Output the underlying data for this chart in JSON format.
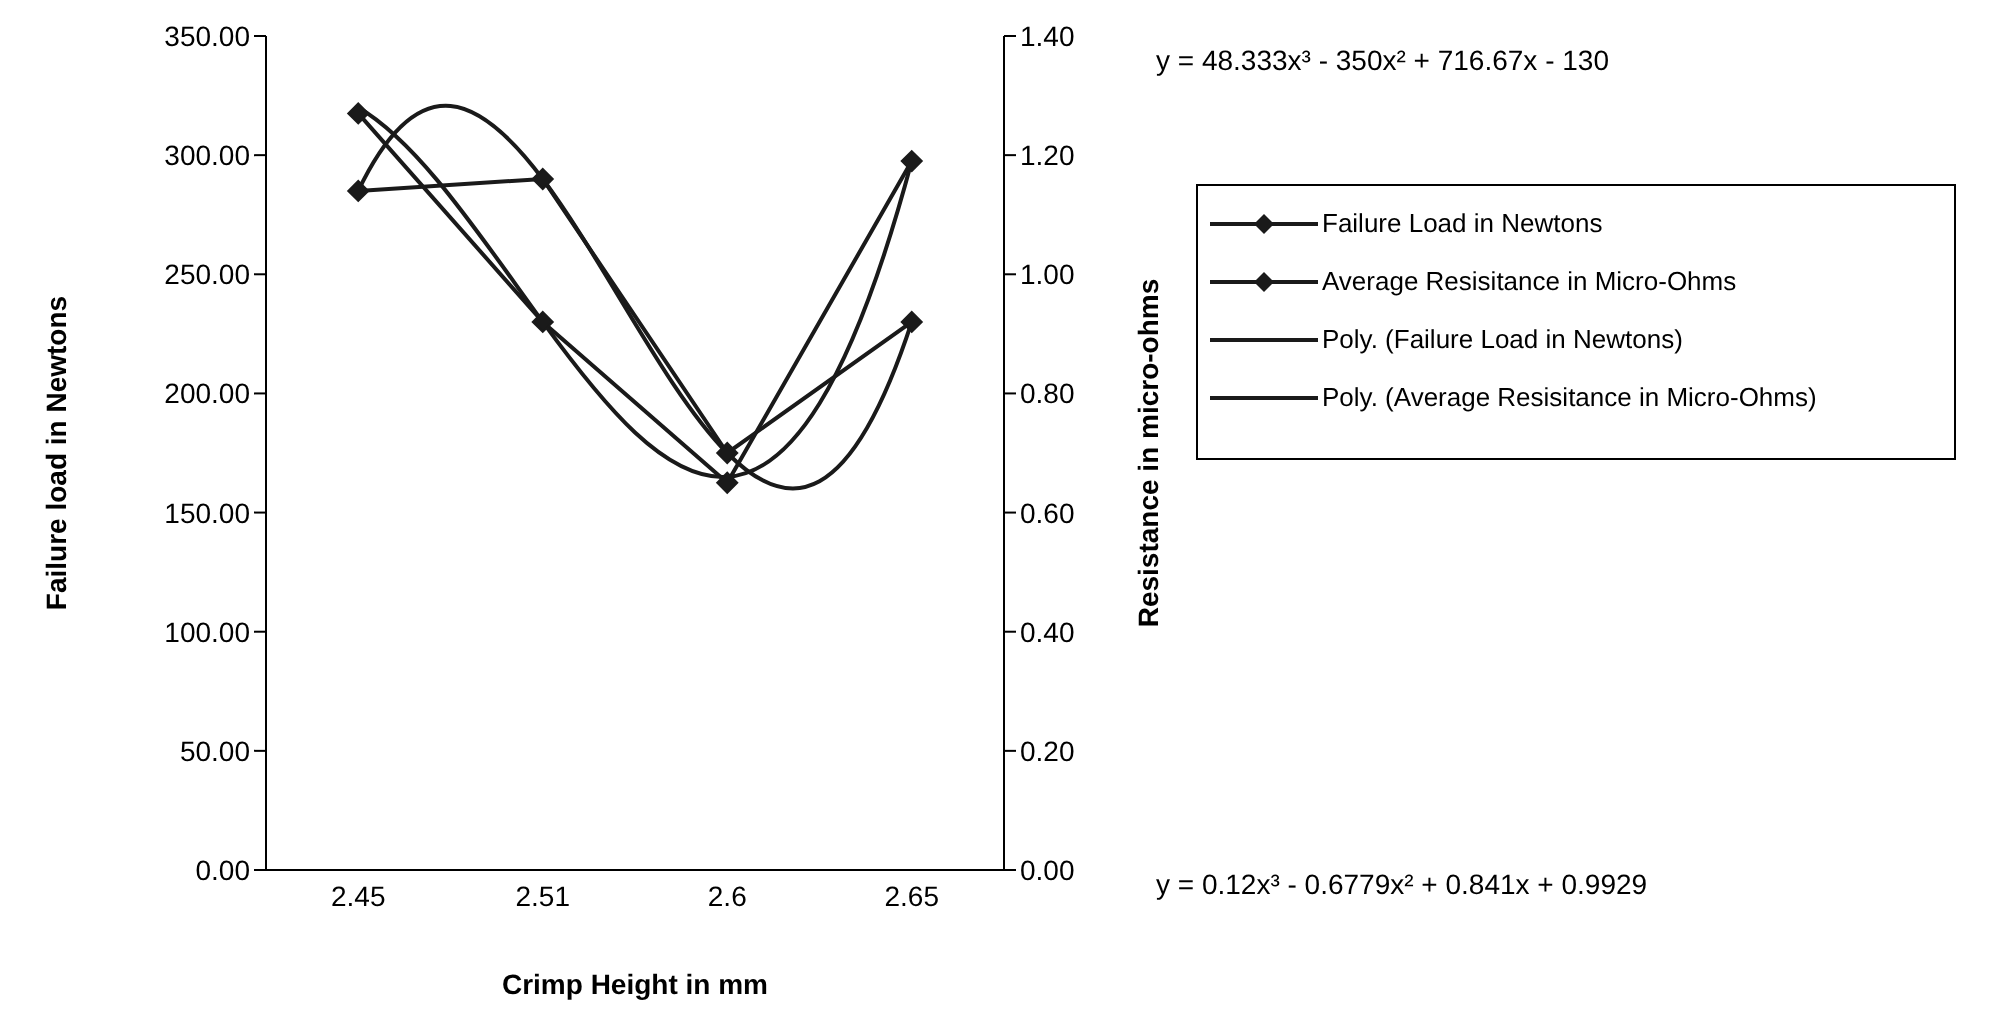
{
  "chart_data": {
    "type": "line",
    "xlabel": "Crimp Height in mm",
    "ylabel": "Failure load in Newtons",
    "y2label": "Resistance in micro-ohms",
    "categories": [
      "2.45",
      "2.51",
      "2.6",
      "2.65"
    ],
    "ylim": [
      0,
      350
    ],
    "yticks": [
      {
        "value": 0,
        "label": "0.00"
      },
      {
        "value": 50,
        "label": "50.00"
      },
      {
        "value": 100,
        "label": "100.00"
      },
      {
        "value": 150,
        "label": "150.00"
      },
      {
        "value": 200,
        "label": "200.00"
      },
      {
        "value": 250,
        "label": "250.00"
      },
      {
        "value": 300,
        "label": "300.00"
      },
      {
        "value": 350,
        "label": "350.00"
      }
    ],
    "y2lim": [
      0,
      1.4
    ],
    "y2ticks": [
      {
        "value": 0,
        "label": "0.00"
      },
      {
        "value": 0.2,
        "label": "0.20"
      },
      {
        "value": 0.4,
        "label": "0.40"
      },
      {
        "value": 0.6,
        "label": "0.60"
      },
      {
        "value": 0.8,
        "label": "0.80"
      },
      {
        "value": 1,
        "label": "1.00"
      },
      {
        "value": 1.2,
        "label": "1.20"
      },
      {
        "value": 1.4,
        "label": "1.40"
      }
    ],
    "legend": "right",
    "line_style": "solid",
    "series": [
      {
        "name": "Failure Load in Newtons",
        "color": "#1a1a1a",
        "marker": "diamond",
        "values": [
          285,
          290,
          175,
          230
        ]
      },
      {
        "name": "Average Resisitance in Micro-Ohms",
        "color": "#1a1a1a",
        "marker": "diamond",
        "axis": "y2",
        "values": [
          1.27,
          0.92,
          0.65,
          1.19
        ]
      },
      {
        "name": "Poly. (Failure Load in Newtons)",
        "color": "#1a1a1a",
        "marker": "none",
        "values": [
          285,
          290,
          175,
          230
        ]
      },
      {
        "name": "Poly. (Average Resisitance in Micro-Ohms)",
        "color": "#1a1a1a",
        "marker": "none",
        "axis": "y2",
        "values": [
          1.28,
          0.92,
          0.66,
          1.19
        ]
      }
    ],
    "annotations": [
      "y = 48.333x³ - 350x² + 716.67x - 130",
      "y = 0.12x³ - 0.6779x² + 0.841x + 0.9929"
    ]
  }
}
